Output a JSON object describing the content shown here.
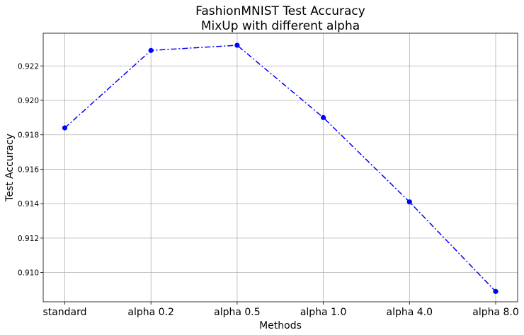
{
  "chart_data": {
    "type": "line",
    "title": "FashionMNIST Test Accuracy",
    "subtitle": "MixUp with different alpha",
    "xlabel": "Methods",
    "ylabel": "Test Accuracy",
    "categories": [
      "standard",
      "alpha 0.2",
      "alpha 0.5",
      "alpha 1.0",
      "alpha 4.0",
      "alpha 8.0"
    ],
    "values": [
      0.9184,
      0.9229,
      0.9232,
      0.919,
      0.9141,
      0.9089
    ],
    "ylim": [
      0.9083,
      0.9239
    ],
    "yticks": [
      0.91,
      0.912,
      0.914,
      0.916,
      0.918,
      0.92,
      0.922
    ],
    "ytick_labels": [
      "0.910",
      "0.912",
      "0.914",
      "0.916",
      "0.918",
      "0.920",
      "0.922"
    ],
    "grid": true,
    "line_style": "dash-dot",
    "marker": "circle",
    "color": "#0000ff"
  }
}
